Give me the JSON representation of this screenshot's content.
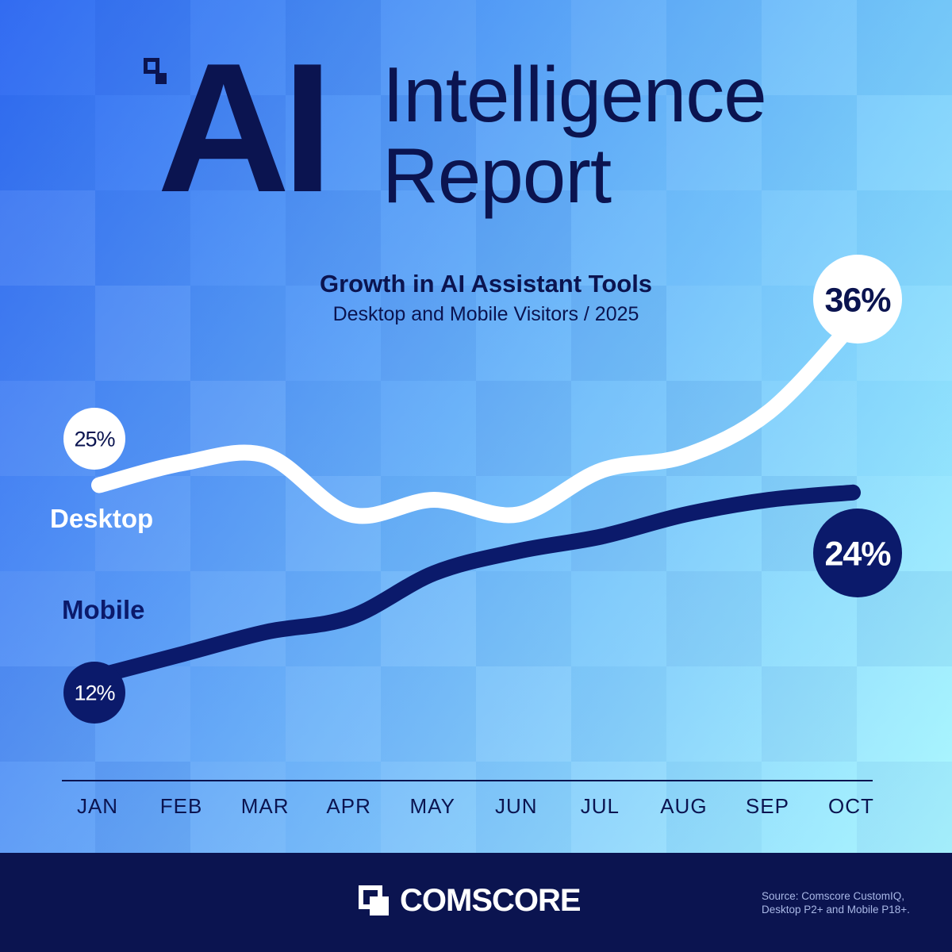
{
  "header": {
    "title_ai": "AI",
    "title_line1": "Intelligence",
    "title_line2": "Report"
  },
  "chart_data": {
    "type": "line",
    "title": "Growth in AI Assistant Tools",
    "subtitle": "Desktop and Mobile Visitors / 2025",
    "categories": [
      "JAN",
      "FEB",
      "MAR",
      "APR",
      "MAY",
      "JUN",
      "JUL",
      "AUG",
      "SEP",
      "OCT"
    ],
    "ylim": [
      0,
      50
    ],
    "grid": false,
    "series": [
      {
        "name": "Desktop",
        "color": "#ffffff",
        "values": [
          25,
          26.5,
          27,
          23,
          24,
          23,
          26,
          27,
          30,
          36
        ],
        "start_label": "25%",
        "end_label": "36%"
      },
      {
        "name": "Mobile",
        "color": "#0b1a6b",
        "values": [
          12,
          13.5,
          15,
          16,
          19,
          20.5,
          21.5,
          23,
          24,
          24.5
        ],
        "start_label": "12%",
        "end_label": "24%"
      }
    ]
  },
  "colors": {
    "navy": "#0b1450",
    "mobile_line": "#0b1a6b",
    "bg_top_left": "#2e6cf2",
    "bg_bottom_right": "#bff8ff"
  },
  "footer": {
    "brand": "COMSCORE",
    "brand_icon": "comscore-logo-icon",
    "source_line1": "Source: Comscore CustomIQ,",
    "source_line2": "Desktop P2+ and Mobile P18+."
  }
}
